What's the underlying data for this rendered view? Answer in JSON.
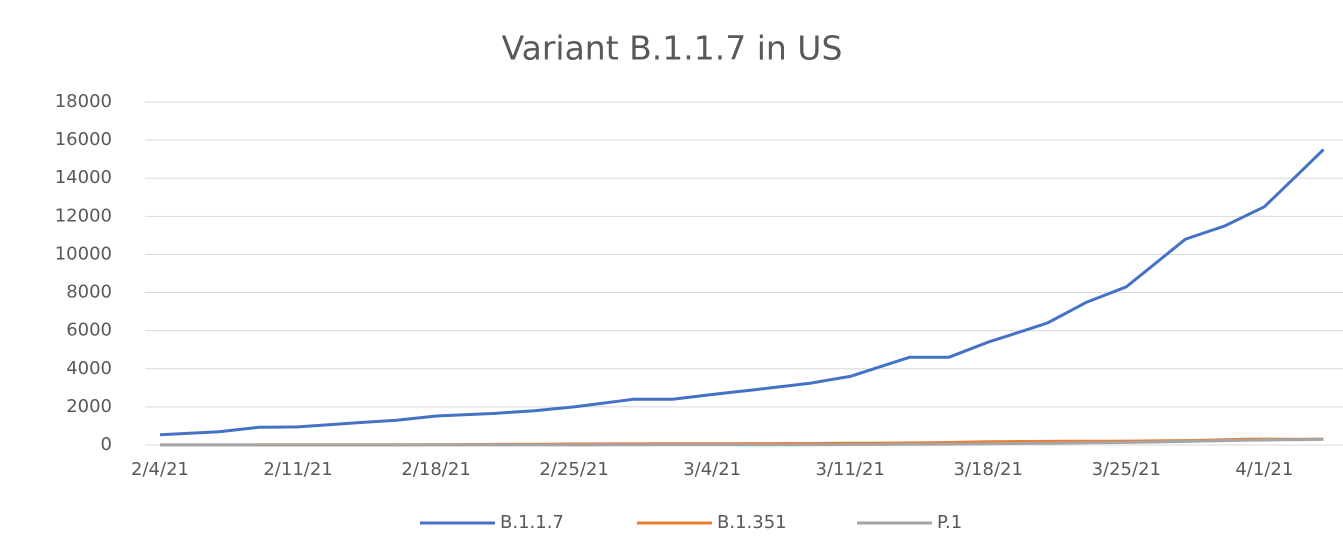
{
  "chart_data": {
    "type": "line",
    "title": "Variant B.1.1.7 in US",
    "categories": [
      "2/4/21",
      null,
      null,
      null,
      null,
      null,
      null,
      "2/11/21",
      null,
      null,
      null,
      null,
      null,
      null,
      "2/18/21",
      null,
      null,
      null,
      null,
      null,
      null,
      "2/25/21",
      null,
      null,
      null,
      null,
      null,
      null,
      "3/4/21",
      null,
      null,
      null,
      null,
      null,
      null,
      "3/11/21",
      null,
      null,
      null,
      null,
      null,
      null,
      "3/18/21",
      null,
      null,
      null,
      null,
      null,
      null,
      "3/25/21",
      null,
      null,
      null,
      null,
      null,
      null,
      "4/1/21",
      null,
      null,
      null
    ],
    "series": [
      {
        "name": "B.1.1.7",
        "color": "#4472c4",
        "values": [
          540,
          593,
          647,
          700,
          815,
          930,
          940,
          950,
          1023,
          1097,
          1170,
          1235,
          1300,
          1410,
          1520,
          1567,
          1613,
          1660,
          1730,
          1800,
          1900,
          2000,
          2133,
          2267,
          2400,
          2400,
          2400,
          2525,
          2650,
          2767,
          2883,
          3000,
          3125,
          3250,
          3425,
          3600,
          3933,
          4267,
          4600,
          4600,
          4600,
          5000,
          5400,
          5733,
          6067,
          6400,
          6950,
          7500,
          7900,
          8300,
          9133,
          9967,
          10800,
          11150,
          11500,
          12000,
          12500,
          13500,
          14500,
          15500
        ]
      },
      {
        "name": "B.1.351",
        "color": "#ed7d31",
        "values": [
          5,
          5,
          5,
          5,
          5,
          8,
          8,
          10,
          10,
          12,
          12,
          15,
          15,
          18,
          20,
          22,
          25,
          30,
          35,
          40,
          45,
          50,
          55,
          60,
          60,
          62,
          65,
          68,
          70,
          70,
          72,
          75,
          78,
          80,
          85,
          90,
          95,
          100,
          110,
          120,
          130,
          150,
          170,
          180,
          185,
          190,
          195,
          200,
          200,
          205,
          210,
          220,
          230,
          250,
          280,
          300,
          310,
          300,
          300,
          310
        ]
      },
      {
        "name": "P.1",
        "color": "#a5a5a5",
        "values": [
          0,
          0,
          0,
          0,
          0,
          0,
          0,
          0,
          0,
          0,
          2,
          2,
          2,
          3,
          3,
          3,
          4,
          4,
          5,
          5,
          6,
          6,
          7,
          8,
          8,
          10,
          10,
          12,
          12,
          14,
          15,
          16,
          18,
          20,
          22,
          25,
          28,
          30,
          35,
          40,
          45,
          55,
          65,
          75,
          85,
          95,
          105,
          115,
          125,
          135,
          150,
          170,
          190,
          210,
          230,
          250,
          265,
          275,
          285,
          300
        ]
      }
    ],
    "ylim": [
      0,
      18000
    ],
    "yticks": [
      0,
      2000,
      4000,
      6000,
      8000,
      10000,
      12000,
      14000,
      16000,
      18000
    ],
    "grid": true,
    "legend": "bottom"
  }
}
